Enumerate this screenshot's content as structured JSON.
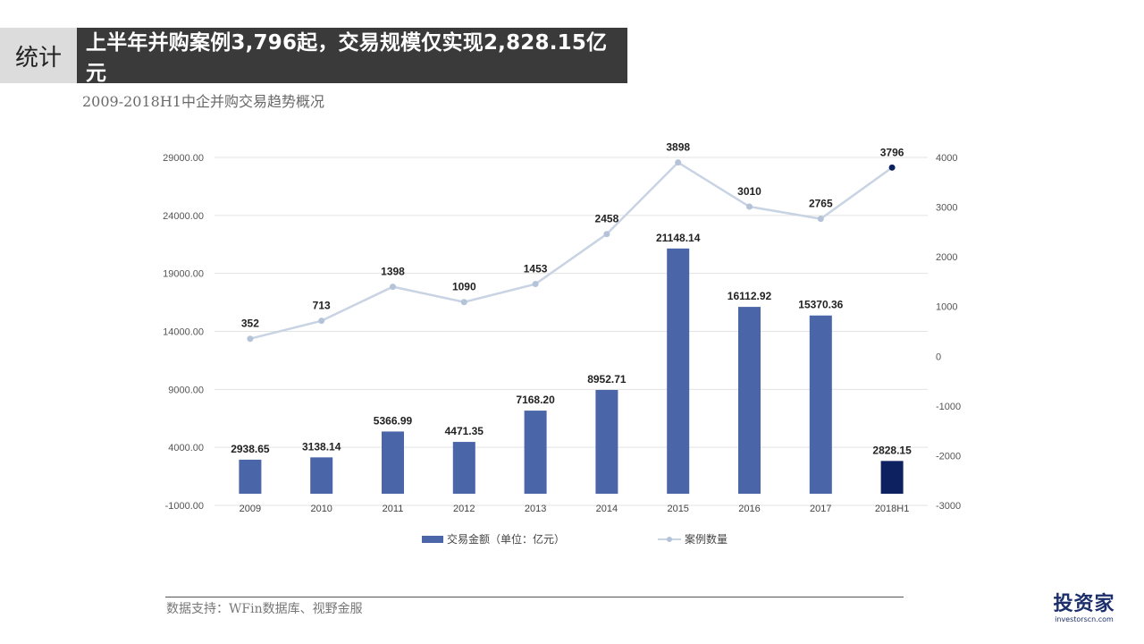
{
  "header": {
    "tag": "统计",
    "title": "上半年并购案例3,796起，交易规模仅实现2,828.15亿元",
    "subtitle": "2009-2018H1中企并购交易趋势概况"
  },
  "footer": {
    "source": "数据支持：WFin数据库、视野金服",
    "logo_main": "投资家",
    "logo_sub": "investorscn.com"
  },
  "colors": {
    "bar": "#4a65a8",
    "bar_highlight": "#0d2060",
    "line": "#c8d3e3",
    "point": "#b5c3d8",
    "point_highlight": "#0d2060"
  },
  "chart_data": {
    "type": "bar+line",
    "categories": [
      "2009",
      "2010",
      "2011",
      "2012",
      "2013",
      "2014",
      "2015",
      "2016",
      "2017",
      "2018H1"
    ],
    "series": [
      {
        "name": "交易金额（单位：亿元）",
        "type": "bar",
        "axis": "left",
        "values": [
          2938.65,
          3138.14,
          5366.99,
          4471.35,
          7168.2,
          8952.71,
          21148.14,
          16112.92,
          15370.36,
          2828.15
        ],
        "labels": [
          "2938.65",
          "3138.14",
          "5366.99",
          "4471.35",
          "7168.20",
          "8952.71",
          "21148.14",
          "16112.92",
          "15370.36",
          "2828.15"
        ]
      },
      {
        "name": "案例数量",
        "type": "line",
        "axis": "right",
        "values": [
          352,
          713,
          1398,
          1090,
          1453,
          2458,
          3898,
          3010,
          2765,
          3796
        ],
        "labels": [
          "352",
          "713",
          "1398",
          "1090",
          "1453",
          "2458",
          "3898",
          "3010",
          "2765",
          "3796"
        ]
      }
    ],
    "y_left": {
      "ylim": [
        -1000,
        29000
      ],
      "ticks": [
        -1000,
        4000,
        9000,
        14000,
        19000,
        24000,
        29000
      ],
      "tick_labels": [
        "-1000.00",
        "4000.00",
        "9000.00",
        "14000.00",
        "19000.00",
        "24000.00",
        "29000.00"
      ]
    },
    "y_right": {
      "ylim": [
        -3000,
        4000
      ],
      "ticks": [
        -3000,
        -2000,
        -1000,
        0,
        1000,
        2000,
        3000,
        4000
      ],
      "tick_labels": [
        "-3000",
        "-2000",
        "-1000",
        "0",
        "1000",
        "2000",
        "3000",
        "4000"
      ]
    },
    "highlight_index": 9,
    "grid": true,
    "legend_position": "bottom"
  }
}
